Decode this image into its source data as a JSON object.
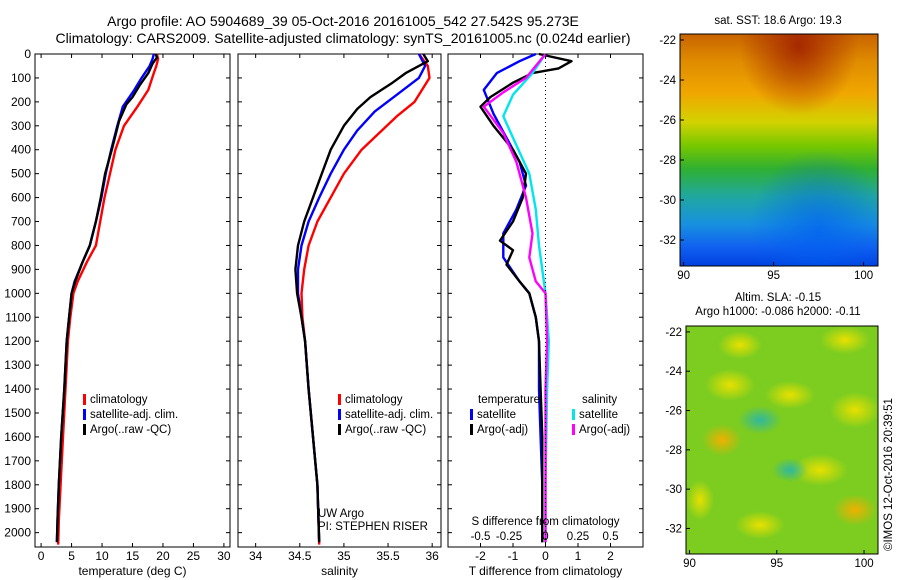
{
  "header": {
    "line1": "Argo profile: AO 5904689_39 05-Oct-2016 20161005_542 27.542S 95.273E",
    "line2": "Climatology: CARS2009. Satellite-adjusted climatology: synTS_20161005.nc (0.024d earlier)"
  },
  "colors": {
    "climatology": "#ff0000",
    "satellite": "#0000ff",
    "argo": "#000000",
    "sat_salinity": "#00e5ee",
    "argo_salinity": "#ff00ff"
  },
  "chart_data": [
    {
      "type": "line",
      "id": "temperature",
      "xlabel": "temperature (deg C)",
      "xlim": [
        -1,
        31
      ],
      "xticks": [
        0,
        5,
        10,
        15,
        20,
        25,
        30
      ],
      "ylim": [
        2060,
        0
      ],
      "yticks": [
        0,
        100,
        200,
        300,
        400,
        500,
        600,
        700,
        800,
        900,
        1000,
        1100,
        1200,
        1300,
        1400,
        1500,
        1600,
        1700,
        1800,
        1900,
        2000
      ],
      "legend": [
        "climatology",
        "satellite-adj. clim.",
        "Argo(..raw -QC)"
      ],
      "series": [
        {
          "name": "climatology",
          "color": "#ff0000",
          "points": [
            [
              19.0,
              0
            ],
            [
              19.2,
              20
            ],
            [
              18.9,
              50
            ],
            [
              18.5,
              80
            ],
            [
              17.6,
              150
            ],
            [
              15.8,
              220
            ],
            [
              13.6,
              300
            ],
            [
              12.2,
              400
            ],
            [
              11.3,
              500
            ],
            [
              10.4,
              600
            ],
            [
              9.7,
              700
            ],
            [
              9.0,
              800
            ],
            [
              7.5,
              870
            ],
            [
              6.0,
              950
            ],
            [
              5.3,
              1000
            ],
            [
              4.8,
              1100
            ],
            [
              4.4,
              1200
            ],
            [
              4.0,
              1400
            ],
            [
              3.6,
              1600
            ],
            [
              3.2,
              1800
            ],
            [
              2.9,
              1950
            ],
            [
              2.8,
              2050
            ]
          ]
        },
        {
          "name": "satellite-adj. clim.",
          "color": "#0000ff",
          "points": [
            [
              18.5,
              0
            ],
            [
              18.3,
              20
            ],
            [
              17.8,
              50
            ],
            [
              16.5,
              100
            ],
            [
              15.3,
              150
            ],
            [
              13.4,
              220
            ],
            [
              12.5,
              300
            ],
            [
              11.5,
              400
            ],
            [
              10.6,
              500
            ],
            [
              9.9,
              600
            ],
            [
              9.0,
              700
            ],
            [
              8.0,
              800
            ],
            [
              6.8,
              870
            ],
            [
              5.5,
              950
            ],
            [
              5.0,
              1000
            ],
            [
              4.6,
              1100
            ],
            [
              4.2,
              1200
            ],
            [
              3.8,
              1400
            ],
            [
              3.3,
              1600
            ],
            [
              2.9,
              1800
            ],
            [
              2.7,
              1950
            ],
            [
              2.6,
              2040
            ]
          ]
        },
        {
          "name": "Argo(..raw -QC)",
          "color": "#000000",
          "points": [
            [
              18.8,
              0
            ],
            [
              19.0,
              15
            ],
            [
              18.3,
              40
            ],
            [
              17.6,
              80
            ],
            [
              16.2,
              130
            ],
            [
              15.0,
              180
            ],
            [
              14.0,
              210
            ],
            [
              12.8,
              280
            ],
            [
              11.6,
              400
            ],
            [
              10.5,
              500
            ],
            [
              9.8,
              600
            ],
            [
              9.0,
              700
            ],
            [
              8.0,
              800
            ],
            [
              6.8,
              870
            ],
            [
              5.6,
              950
            ],
            [
              5.0,
              1000
            ],
            [
              4.6,
              1100
            ],
            [
              4.2,
              1200
            ],
            [
              3.8,
              1400
            ],
            [
              3.3,
              1600
            ],
            [
              2.9,
              1800
            ],
            [
              2.7,
              1950
            ],
            [
              2.6,
              2040
            ]
          ]
        }
      ]
    },
    {
      "type": "line",
      "id": "salinity",
      "xlabel": "salinity",
      "xlim": [
        33.8,
        36.1
      ],
      "xticks": [
        34,
        34.5,
        35,
        35.5,
        36
      ],
      "ylim": [
        2060,
        0
      ],
      "legend": [
        "climatology",
        "satellite-adj. clim.",
        "Argo(..raw -QC)"
      ],
      "annotation": [
        "UW Argo",
        "PI: STEPHEN RISER"
      ],
      "series": [
        {
          "name": "climatology",
          "color": "#ff0000",
          "points": [
            [
              35.85,
              0
            ],
            [
              35.95,
              50
            ],
            [
              35.97,
              100
            ],
            [
              35.8,
              200
            ],
            [
              35.6,
              260
            ],
            [
              35.4,
              330
            ],
            [
              35.2,
              400
            ],
            [
              35.0,
              500
            ],
            [
              34.85,
              600
            ],
            [
              34.7,
              700
            ],
            [
              34.6,
              800
            ],
            [
              34.55,
              900
            ],
            [
              34.52,
              1000
            ],
            [
              34.53,
              1100
            ],
            [
              34.56,
              1200
            ],
            [
              34.6,
              1400
            ],
            [
              34.65,
              1600
            ],
            [
              34.7,
              1800
            ],
            [
              34.72,
              2050
            ]
          ]
        },
        {
          "name": "satellite-adj. clim.",
          "color": "#0000ff",
          "points": [
            [
              35.85,
              0
            ],
            [
              35.92,
              50
            ],
            [
              35.85,
              100
            ],
            [
              35.6,
              170
            ],
            [
              35.35,
              240
            ],
            [
              35.15,
              320
            ],
            [
              35.0,
              400
            ],
            [
              34.85,
              500
            ],
            [
              34.72,
              600
            ],
            [
              34.6,
              700
            ],
            [
              34.52,
              800
            ],
            [
              34.48,
              900
            ],
            [
              34.48,
              1000
            ],
            [
              34.52,
              1100
            ],
            [
              34.56,
              1200
            ],
            [
              34.6,
              1400
            ],
            [
              34.65,
              1600
            ],
            [
              34.7,
              1800
            ],
            [
              34.72,
              2040
            ]
          ]
        },
        {
          "name": "Argo(..raw -QC)",
          "color": "#000000",
          "points": [
            [
              35.9,
              0
            ],
            [
              35.95,
              30
            ],
            [
              35.7,
              80
            ],
            [
              35.55,
              120
            ],
            [
              35.3,
              180
            ],
            [
              35.15,
              230
            ],
            [
              35.0,
              300
            ],
            [
              34.85,
              400
            ],
            [
              34.75,
              500
            ],
            [
              34.65,
              600
            ],
            [
              34.55,
              700
            ],
            [
              34.48,
              800
            ],
            [
              34.45,
              900
            ],
            [
              34.47,
              1000
            ],
            [
              34.52,
              1100
            ],
            [
              34.56,
              1200
            ],
            [
              34.6,
              1400
            ],
            [
              34.65,
              1600
            ],
            [
              34.7,
              1800
            ],
            [
              34.72,
              2040
            ]
          ]
        }
      ]
    },
    {
      "type": "line",
      "id": "differences",
      "xlabel": "T difference from climatology",
      "top_label": "S difference from climatology",
      "xlim": [
        -3,
        3
      ],
      "xticks": [
        -2,
        -1,
        0,
        1,
        2
      ],
      "sticks_labels": [
        "-0.5",
        "-0.25",
        "0",
        "0.25",
        "0.5"
      ],
      "ylim": [
        2060,
        0
      ],
      "legend_headers": [
        "temperature",
        "salinity"
      ],
      "legend": [
        "satellite",
        "Argo(-adj)",
        "satellite",
        "Argo(-adj)"
      ],
      "series": [
        {
          "name": "T satellite",
          "color": "#0000ff",
          "points": [
            [
              -0.3,
              0
            ],
            [
              -0.8,
              30
            ],
            [
              -1.5,
              80
            ],
            [
              -1.9,
              150
            ],
            [
              -1.6,
              250
            ],
            [
              -1.2,
              350
            ],
            [
              -0.8,
              450
            ],
            [
              -0.6,
              550
            ],
            [
              -0.9,
              650
            ],
            [
              -1.3,
              750
            ],
            [
              -1.3,
              850
            ],
            [
              -0.8,
              950
            ],
            [
              -0.5,
              1000
            ],
            [
              -0.3,
              1100
            ],
            [
              -0.2,
              1200
            ],
            [
              -0.2,
              1400
            ],
            [
              -0.15,
              1600
            ],
            [
              -0.1,
              1800
            ],
            [
              -0.1,
              2040
            ]
          ]
        },
        {
          "name": "T Argo(-adj)",
          "color": "#000000",
          "points": [
            [
              -0.2,
              0
            ],
            [
              0.8,
              30
            ],
            [
              0.4,
              60
            ],
            [
              -0.4,
              80
            ],
            [
              -1.0,
              120
            ],
            [
              -1.7,
              180
            ],
            [
              -2.0,
              220
            ],
            [
              -1.6,
              300
            ],
            [
              -1.0,
              400
            ],
            [
              -0.6,
              500
            ],
            [
              -0.7,
              600
            ],
            [
              -1.0,
              700
            ],
            [
              -1.4,
              780
            ],
            [
              -1.0,
              820
            ],
            [
              -1.2,
              880
            ],
            [
              -0.8,
              950
            ],
            [
              -0.5,
              1000
            ],
            [
              -0.3,
              1100
            ],
            [
              -0.2,
              1200
            ],
            [
              -0.15,
              1400
            ],
            [
              -0.1,
              1600
            ],
            [
              -0.1,
              1800
            ],
            [
              -0.1,
              2040
            ]
          ]
        },
        {
          "name": "S satellite",
          "color": "#00e5ee",
          "points": [
            [
              0.0,
              0
            ],
            [
              -0.4,
              80
            ],
            [
              -1.0,
              170
            ],
            [
              -1.3,
              260
            ],
            [
              -1.0,
              350
            ],
            [
              -0.5,
              500
            ],
            [
              -0.3,
              650
            ],
            [
              -0.2,
              800
            ],
            [
              0.0,
              1000
            ],
            [
              0.1,
              1200
            ],
            [
              0.05,
              1400
            ],
            [
              0.0,
              1800
            ],
            [
              0.0,
              2040
            ]
          ]
        },
        {
          "name": "S Argo(-adj)",
          "color": "#ff00ff",
          "points": [
            [
              0.0,
              0
            ],
            [
              -0.6,
              100
            ],
            [
              -1.3,
              160
            ],
            [
              -1.9,
              220
            ],
            [
              -1.3,
              330
            ],
            [
              -0.9,
              450
            ],
            [
              -0.6,
              600
            ],
            [
              -0.4,
              750
            ],
            [
              -0.5,
              850
            ],
            [
              -0.3,
              950
            ],
            [
              0.0,
              1000
            ],
            [
              0.05,
              1200
            ],
            [
              0.0,
              1400
            ],
            [
              0.0,
              1800
            ],
            [
              0.0,
              2040
            ]
          ]
        }
      ]
    },
    {
      "type": "heatmap",
      "id": "sst-map",
      "title": "sat. SST: 18.6 Argo: 19.3",
      "xlim": [
        89.8,
        100.8
      ],
      "ylim": [
        -33.3,
        -21.7
      ],
      "xticks": [
        90,
        95,
        100
      ],
      "yticks": [
        -22,
        -24,
        -26,
        -28,
        -30,
        -32
      ]
    },
    {
      "type": "heatmap",
      "id": "sla-map",
      "title": "Altim. SLA: -0.15",
      "subtitle": "Argo h1000: -0.086 h2000: -0.11",
      "xlim": [
        89.8,
        100.8
      ],
      "ylim": [
        -33.3,
        -21.7
      ],
      "xticks": [
        90,
        95,
        100
      ],
      "yticks": [
        -22,
        -24,
        -26,
        -28,
        -30,
        -32
      ]
    }
  ],
  "footer_stamp": "©IMOS 12-Oct-2016 20:39:51"
}
